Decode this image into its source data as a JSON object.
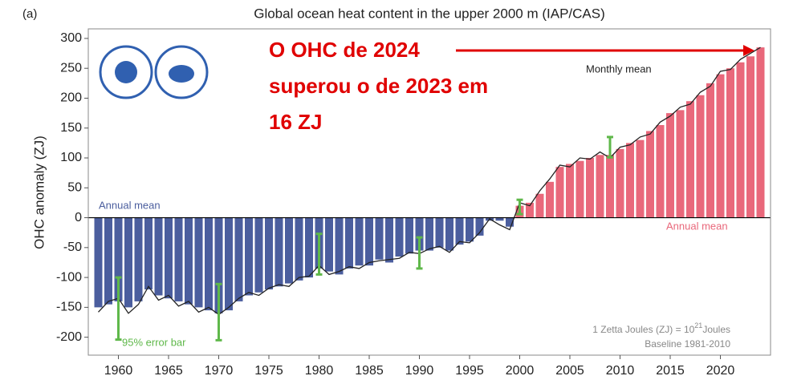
{
  "chart_data": {
    "type": "bar",
    "panel_label": "(a)",
    "title": "Global ocean heat content in the upper 2000 m (IAP/CAS)",
    "y_label": "OHC anomaly (ZJ)",
    "x": [
      1958,
      1959,
      1960,
      1961,
      1962,
      1963,
      1964,
      1965,
      1966,
      1967,
      1968,
      1969,
      1970,
      1971,
      1972,
      1973,
      1974,
      1975,
      1976,
      1977,
      1978,
      1979,
      1980,
      1981,
      1982,
      1983,
      1984,
      1985,
      1986,
      1987,
      1988,
      1989,
      1990,
      1991,
      1992,
      1993,
      1994,
      1995,
      1996,
      1997,
      1998,
      1999,
      2000,
      2001,
      2002,
      2003,
      2004,
      2005,
      2006,
      2007,
      2008,
      2009,
      2010,
      2011,
      2012,
      2013,
      2014,
      2015,
      2016,
      2017,
      2018,
      2019,
      2020,
      2021,
      2022,
      2023,
      2024
    ],
    "series": [
      {
        "name": "Annual mean",
        "negative_color": "#4b5e9e",
        "positive_color": "#e9687b",
        "values": [
          -150,
          -145,
          -140,
          -150,
          -140,
          -120,
          -130,
          -135,
          -140,
          -145,
          -150,
          -155,
          -160,
          -155,
          -140,
          -130,
          -125,
          -120,
          -115,
          -110,
          -105,
          -100,
          -85,
          -90,
          -95,
          -85,
          -80,
          -80,
          -70,
          -75,
          -65,
          -60,
          -55,
          -55,
          -50,
          -55,
          -45,
          -40,
          -30,
          -5,
          -5,
          -15,
          20,
          25,
          40,
          60,
          85,
          90,
          95,
          100,
          105,
          105,
          115,
          125,
          130,
          145,
          155,
          175,
          180,
          195,
          205,
          225,
          240,
          250,
          260,
          270,
          285
        ]
      },
      {
        "name": "Monthly mean",
        "color": "#222222",
        "type": "line",
        "values": [
          -158,
          -140,
          -135,
          -160,
          -145,
          -115,
          -138,
          -130,
          -148,
          -140,
          -158,
          -150,
          -162,
          -150,
          -135,
          -125,
          -130,
          -118,
          -112,
          -115,
          -100,
          -98,
          -80,
          -95,
          -90,
          -82,
          -85,
          -75,
          -72,
          -70,
          -68,
          -58,
          -60,
          -52,
          -48,
          -58,
          -40,
          -42,
          -25,
          -2,
          -12,
          -20,
          25,
          20,
          45,
          65,
          88,
          85,
          100,
          98,
          110,
          100,
          118,
          122,
          135,
          140,
          160,
          170,
          185,
          190,
          210,
          220,
          245,
          248,
          265,
          275,
          285
        ]
      }
    ],
    "error_bars": {
      "x": [
        1960,
        1970,
        1980,
        1990,
        2000,
        2009
      ],
      "values": [
        -152,
        -158,
        -61,
        -59,
        18,
        118
      ],
      "errors": [
        52,
        47,
        34,
        26,
        12,
        17
      ],
      "color": "#5fb84a"
    },
    "annotations": {
      "annual_mean_left": "Annual mean",
      "annual_mean_right": "Annual mean",
      "monthly_mean": "Monthly mean",
      "error_bar": "95% error bar",
      "note": [
        "1 Zetta Joules (ZJ) = 10",
        "21",
        "Joules"
      ],
      "baseline": "Baseline 1981-2010"
    },
    "callout": [
      "O OHC de 2024",
      "superou o de 2023 em",
      "16 ZJ"
    ],
    "callout_color": "#e00000",
    "xlim": [
      1957,
      2025
    ],
    "ylim": [
      -230,
      316
    ],
    "xticks": [
      1960,
      1965,
      1970,
      1975,
      1980,
      1985,
      1990,
      1995,
      2000,
      2005,
      2010,
      2015,
      2020
    ],
    "yticks": [
      -200,
      -150,
      -100,
      -50,
      0,
      50,
      100,
      150,
      200,
      250,
      300
    ]
  }
}
